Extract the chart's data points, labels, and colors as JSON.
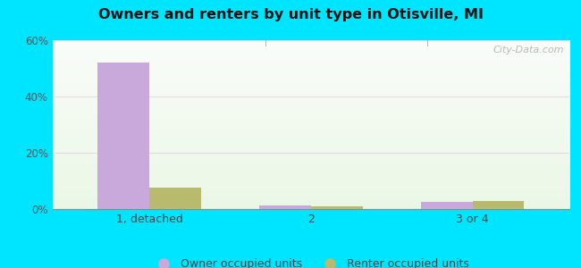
{
  "title": "Owners and renters by unit type in Otisville, MI",
  "categories": [
    "1, detached",
    "2",
    "3 or 4"
  ],
  "owner_values": [
    52,
    1.2,
    2.5
  ],
  "renter_values": [
    7.5,
    1.0,
    2.8
  ],
  "owner_color": "#c9a8dc",
  "renter_color": "#b8ba6e",
  "ylim": [
    0,
    60
  ],
  "yticks": [
    0,
    20,
    40,
    60
  ],
  "ytick_labels": [
    "0%",
    "20%",
    "40%",
    "60%"
  ],
  "bar_width": 0.32,
  "background_outer": "#00e5ff",
  "legend_owner": "Owner occupied units",
  "legend_renter": "Renter occupied units",
  "watermark": "City-Data.com"
}
